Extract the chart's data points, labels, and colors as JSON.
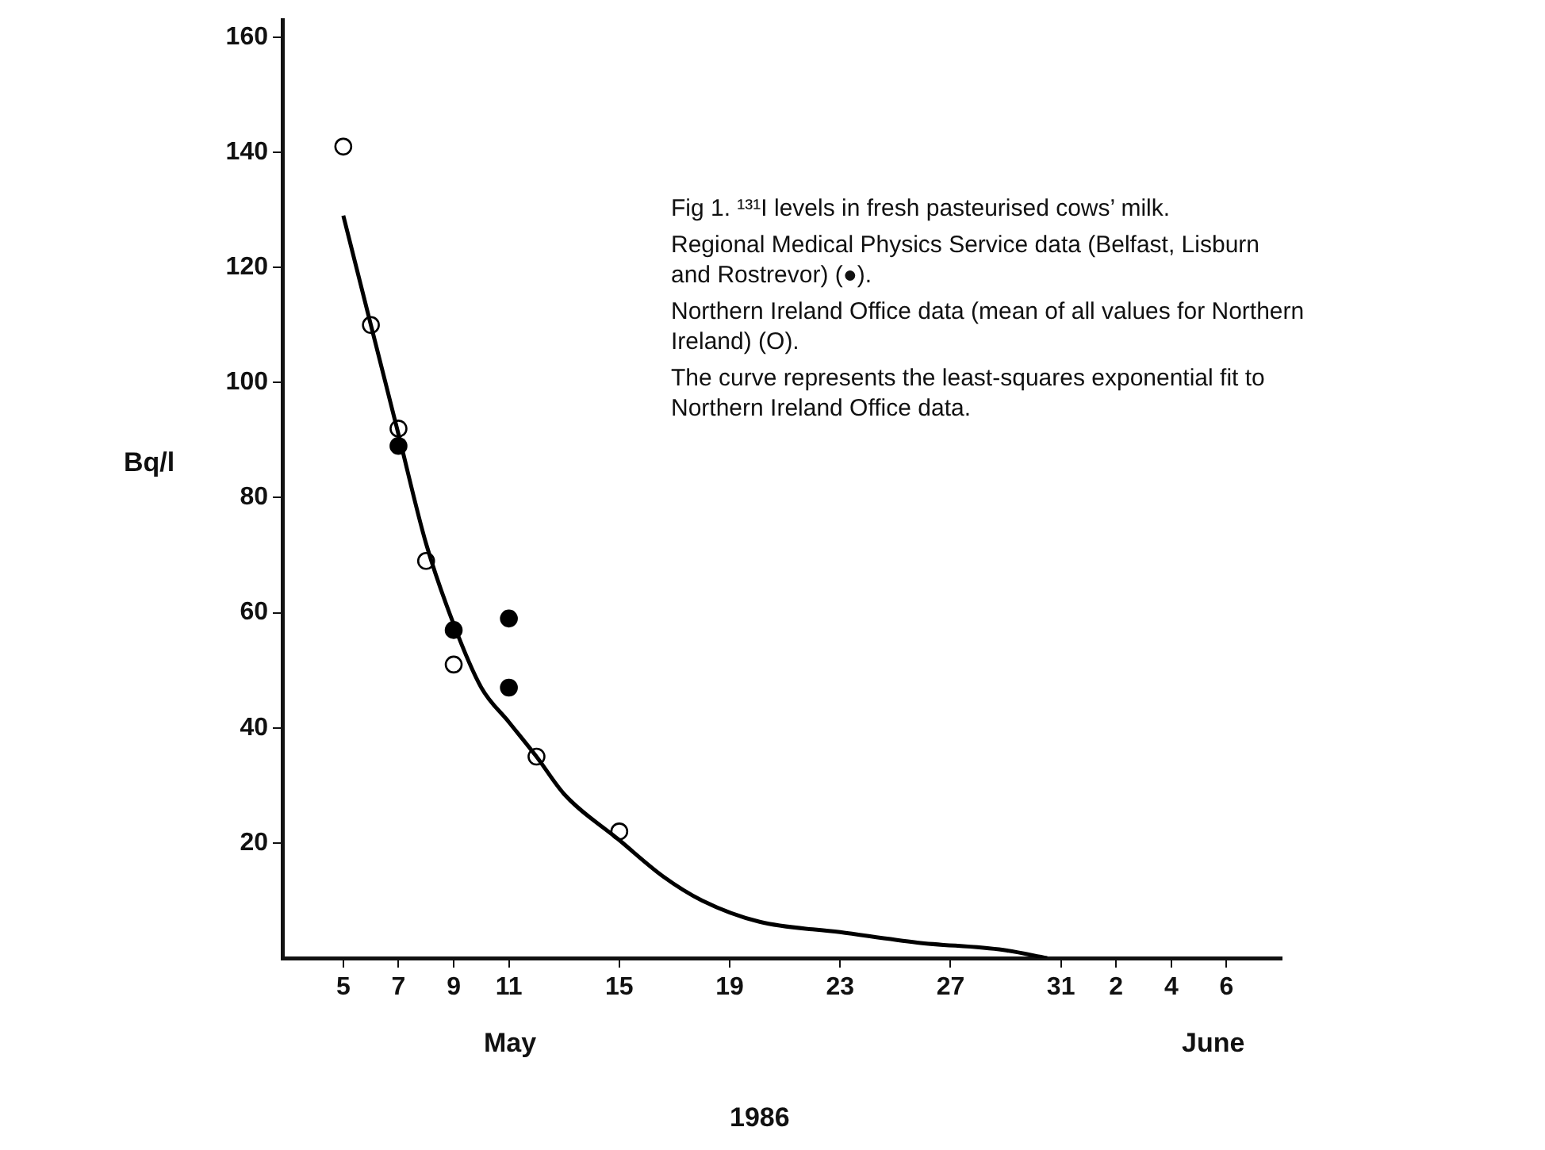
{
  "chart_data": {
    "type": "scatter",
    "title": "Fig 1.  ¹³¹I levels in fresh pasteurised cows’ milk.",
    "xlabel": "1986",
    "ylabel": "Bq/l",
    "annotations": [
      "Regional Medical Physics Service data (Belfast, Lisburn and Rostrevor)  (●).",
      "Northern Ireland Office data (mean of all values for Northern Ireland)  (O).",
      "The curve represents the least-squares exponential fit to Northern Ireland Office data.",
      "May",
      "June"
    ],
    "xlim": [
      "--05-02T19:00",
      "--06-08"
    ],
    "xticks": [
      {
        "value": "--05-05",
        "label": "5"
      },
      {
        "value": "--05-07",
        "label": "7"
      },
      {
        "value": "--05-09",
        "label": "9"
      },
      {
        "value": "--05-11",
        "label": "11"
      },
      {
        "value": "--05-15",
        "label": "15"
      },
      {
        "value": "--05-19",
        "label": "19"
      },
      {
        "value": "--05-23",
        "label": "23"
      },
      {
        "value": "--05-27",
        "label": "27"
      },
      {
        "value": "--05-31",
        "label": "31"
      },
      {
        "value": "--06-02",
        "label": "2"
      },
      {
        "value": "--06-04",
        "label": "4"
      },
      {
        "value": "--06-06",
        "label": "6"
      }
    ],
    "ylim": [
      0,
      163
    ],
    "yticks": [
      20,
      40,
      60,
      80,
      100,
      120,
      140,
      160
    ],
    "grid": false,
    "legend": false,
    "series": [
      {
        "marker": "circle",
        "color": "#ffffff",
        "x": [
          "--05-05",
          "--05-06",
          "--05-07",
          "--05-08",
          "--05-09",
          "--05-12",
          "--05-15"
        ],
        "values": [
          141,
          110,
          92,
          69,
          51,
          35,
          22
        ]
      },
      {
        "marker": "circle",
        "color": "#000000",
        "x": [
          "--05-07",
          "--05-09",
          "--05-11",
          "--05-11"
        ],
        "values": [
          89,
          57,
          59,
          47
        ]
      },
      {
        "type": "line",
        "marker": "none",
        "color": "#000000",
        "x": [
          "--05-05",
          "--05-06",
          "--05-07",
          "--05-08",
          "--05-09",
          "--05-10",
          "--05-11",
          "--05-12",
          "--05-13",
          "--05-15",
          "--05-16T14:00",
          "--05-18",
          "--05-20T02:00",
          "--05-23",
          "--05-25T19:00",
          "--05-28T22:00",
          "--05-30T12:00"
        ],
        "values": [
          129,
          110,
          91,
          72,
          58,
          47,
          41,
          35,
          28.5,
          20.5,
          14.2,
          10,
          6.3,
          4.5,
          2.7,
          1.4,
          0
        ]
      }
    ]
  }
}
